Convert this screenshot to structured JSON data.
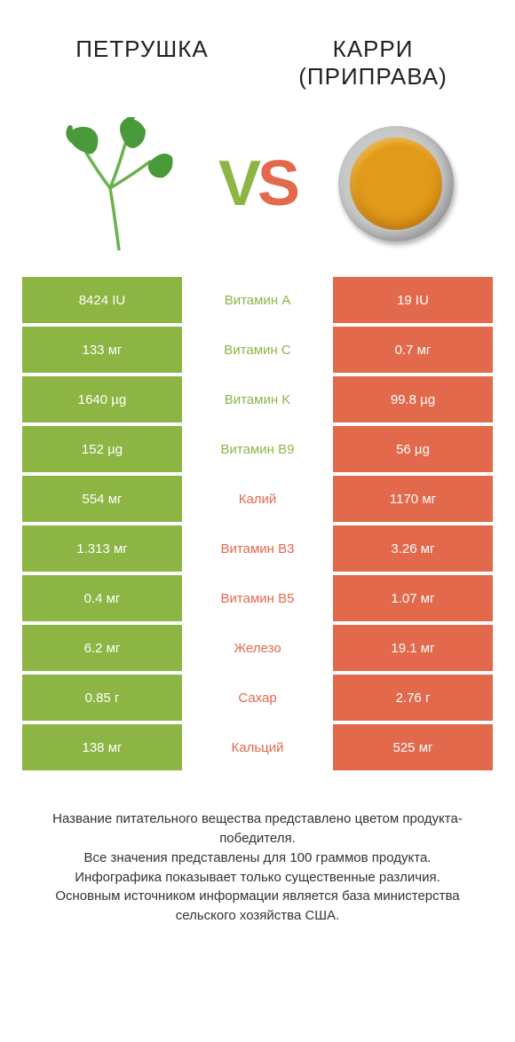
{
  "colors": {
    "green": "#8db544",
    "orange": "#e2694c",
    "text": "#222222",
    "white": "#ffffff",
    "powder": "#e29a1a",
    "parsley_leaf": "#4a9a3c",
    "parsley_stem": "#6bb24a"
  },
  "header": {
    "left_title": "ПЕТРУШКА",
    "right_title_line1": "КАРРИ",
    "right_title_line2": "(ПРИПРАВА)"
  },
  "vs": {
    "v": "V",
    "s": "S"
  },
  "rows": [
    {
      "left": "8424 IU",
      "label": "Витамин A",
      "right": "19 IU",
      "winner": "left"
    },
    {
      "left": "133 мг",
      "label": "Витамин C",
      "right": "0.7 мг",
      "winner": "left"
    },
    {
      "left": "1640 µg",
      "label": "Витамин K",
      "right": "99.8 µg",
      "winner": "left"
    },
    {
      "left": "152 µg",
      "label": "Витамин B9",
      "right": "56 µg",
      "winner": "left"
    },
    {
      "left": "554 мг",
      "label": "Калий",
      "right": "1170 мг",
      "winner": "right"
    },
    {
      "left": "1.313 мг",
      "label": "Витамин B3",
      "right": "3.26 мг",
      "winner": "right"
    },
    {
      "left": "0.4 мг",
      "label": "Витамин B5",
      "right": "1.07 мг",
      "winner": "right"
    },
    {
      "left": "6.2 мг",
      "label": "Железо",
      "right": "19.1 мг",
      "winner": "right"
    },
    {
      "left": "0.85 г",
      "label": "Сахар",
      "right": "2.76 г",
      "winner": "right"
    },
    {
      "left": "138 мг",
      "label": "Кальций",
      "right": "525 мг",
      "winner": "right"
    }
  ],
  "footer": {
    "line1": "Название питательного вещества представлено цветом продукта-победителя.",
    "line2": "Все значения представлены для 100 граммов продукта.",
    "line3": "Инфографика показывает только существенные различия.",
    "line4": "Основным источником информации является база министерства сельского хозяйства США."
  }
}
